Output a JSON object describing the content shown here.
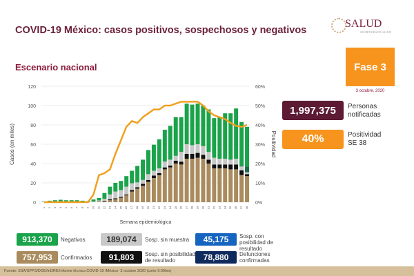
{
  "header": {
    "title": "COVID-19 México: casos positivos, sospechosos y negativos",
    "subtitle": "Escenario nacional",
    "logo_text": "SALUD",
    "logo_sub": "SECRETARÍA DE SALUD",
    "phase": "Fase 3",
    "date": "3 octubre, 2020"
  },
  "kpis": [
    {
      "value": "1,997,375",
      "label": "Personas notificadas",
      "color": "#5c1a33"
    },
    {
      "value": "40%",
      "label": "Positividad SE 38",
      "color": "#f7941d"
    }
  ],
  "legend": [
    {
      "value": "913,370",
      "label": "Negativos",
      "color": "#1aa34a"
    },
    {
      "value": "189,074",
      "label": "Sosp. sin muestra",
      "color": "#c8c8c8"
    },
    {
      "value": "45,175",
      "label": "Sosp. con posibilidad de resultado",
      "color": "#1565c0"
    },
    {
      "value": "757,953",
      "label": "Confirmados",
      "color": "#a98b5e"
    },
    {
      "value": "91,803",
      "label": "Sosp. sin posibilidad de resultado",
      "color": "#111111"
    },
    {
      "value": "78,880",
      "label": "Defunciones confirmadas",
      "color": "#0f2a5c"
    }
  ],
  "footer": "Fuente: SSA/SPPS/DGE/InDRE/Informe técnico.COVID-19 /México- 3 octubre 2020 (corte 9:00hrs)",
  "chart_data": {
    "type": "bar",
    "stacked": true,
    "xlabel": "Semana epidemiológica",
    "ylabel": "Casos (en miles)",
    "y2label": "Positividad",
    "ylim": [
      0,
      120
    ],
    "y2lim": [
      0,
      60
    ],
    "yticks": [
      "0",
      "20",
      "40",
      "60",
      "80",
      "100",
      "120"
    ],
    "y2ticks": [
      "0%",
      "10%",
      "20%",
      "30%",
      "40%",
      "50%",
      "60%"
    ],
    "categories": [
      "1",
      "2",
      "3",
      "4",
      "5",
      "6",
      "7",
      "8",
      "9",
      "10",
      "11",
      "12",
      "13",
      "14",
      "15",
      "16",
      "17",
      "18",
      "19",
      "20",
      "21",
      "22",
      "23",
      "24",
      "25",
      "26",
      "27",
      "28",
      "29",
      "30",
      "31",
      "32",
      "33",
      "34",
      "35",
      "36",
      "37",
      "38"
    ],
    "series": [
      {
        "name": "Confirmados",
        "color": "#a98b5e",
        "values": [
          0,
          0,
          0,
          0,
          0,
          0,
          0,
          0,
          0,
          0.3,
          0.8,
          1,
          2,
          3,
          4.5,
          7,
          11,
          14,
          17,
          21,
          25,
          28,
          34,
          36,
          40,
          39,
          45,
          45,
          46,
          45,
          40,
          35,
          35,
          35,
          34,
          34,
          28,
          27
        ]
      },
      {
        "name": "Sosp. sin posibilidad de resultado",
        "color": "#111111",
        "values": [
          0,
          0,
          0,
          0,
          0,
          0,
          0,
          0,
          0,
          0,
          0,
          0.5,
          1,
          1,
          1,
          1,
          1.5,
          1.5,
          2,
          2,
          2.5,
          2,
          2,
          2,
          3,
          3,
          5,
          5,
          5,
          4,
          4,
          4,
          4,
          4,
          5,
          5,
          5,
          2
        ]
      },
      {
        "name": "Sosp. sin muestra",
        "color": "#c8c8c8",
        "values": [
          0,
          0,
          0,
          0,
          0,
          0,
          0,
          0,
          0,
          0.5,
          1,
          2,
          5,
          7,
          7,
          8,
          7,
          5,
          4,
          6,
          5,
          5,
          6,
          6,
          5,
          10,
          10,
          9,
          9,
          9,
          8,
          7,
          6,
          6,
          5,
          6,
          4,
          2
        ]
      },
      {
        "name": "Sosp. con posibilidad de resultado",
        "color": "#1a6a4a",
        "values": [
          0,
          0,
          0,
          0,
          0,
          0,
          0,
          0,
          0,
          0,
          0,
          0,
          0,
          0,
          0,
          0,
          0,
          0,
          0,
          0,
          0,
          0,
          0,
          0,
          0,
          0,
          0,
          0,
          0,
          0,
          0,
          0,
          0,
          0,
          0,
          0,
          1,
          6
        ]
      },
      {
        "name": "Negativos",
        "color": "#1aa34a",
        "values": [
          0.5,
          1.5,
          2,
          2.5,
          2,
          2,
          2,
          1.5,
          1,
          2,
          2.5,
          6,
          8,
          9,
          9.5,
          11,
          13,
          17,
          21,
          25,
          27,
          30,
          33,
          35,
          40,
          36,
          42,
          42,
          42,
          42,
          44,
          41,
          43,
          47,
          48,
          52,
          45,
          41
        ]
      }
    ],
    "line": {
      "name": "Positividad",
      "color": "#f0a020",
      "axis": "right",
      "values": [
        0,
        0,
        0,
        0,
        0,
        0,
        0,
        0,
        0,
        4,
        14,
        15,
        17,
        25,
        32,
        39,
        42,
        41,
        44,
        46,
        48,
        48,
        50,
        50,
        51,
        52,
        52,
        52,
        52,
        50,
        47,
        45,
        44,
        43,
        41,
        39.5,
        39,
        40
      ]
    }
  }
}
